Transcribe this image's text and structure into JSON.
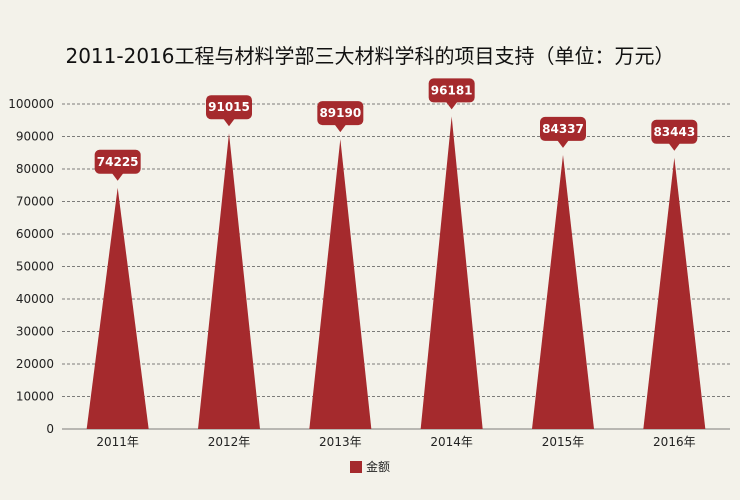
{
  "chart_data": {
    "type": "bar",
    "title": "2011-2016工程与材料学部三大材料学科的项目支持（单位：万元）",
    "categories": [
      "2011年",
      "2012年",
      "2013年",
      "2014年",
      "2015年",
      "2016年"
    ],
    "series": [
      {
        "name": "金额",
        "values": [
          74225,
          91015,
          89190,
          96181,
          84337,
          83443
        ],
        "color": "#a52a2d"
      }
    ],
    "ylim": [
      0,
      100000
    ],
    "yticks": [
      0,
      10000,
      20000,
      30000,
      40000,
      50000,
      60000,
      70000,
      80000,
      90000,
      100000
    ],
    "grid": true,
    "legend_position": "bottom",
    "bar_shape": "triangle",
    "data_labels": true,
    "gridline_color": "#555555",
    "label_box_color": "#a52a2d"
  }
}
